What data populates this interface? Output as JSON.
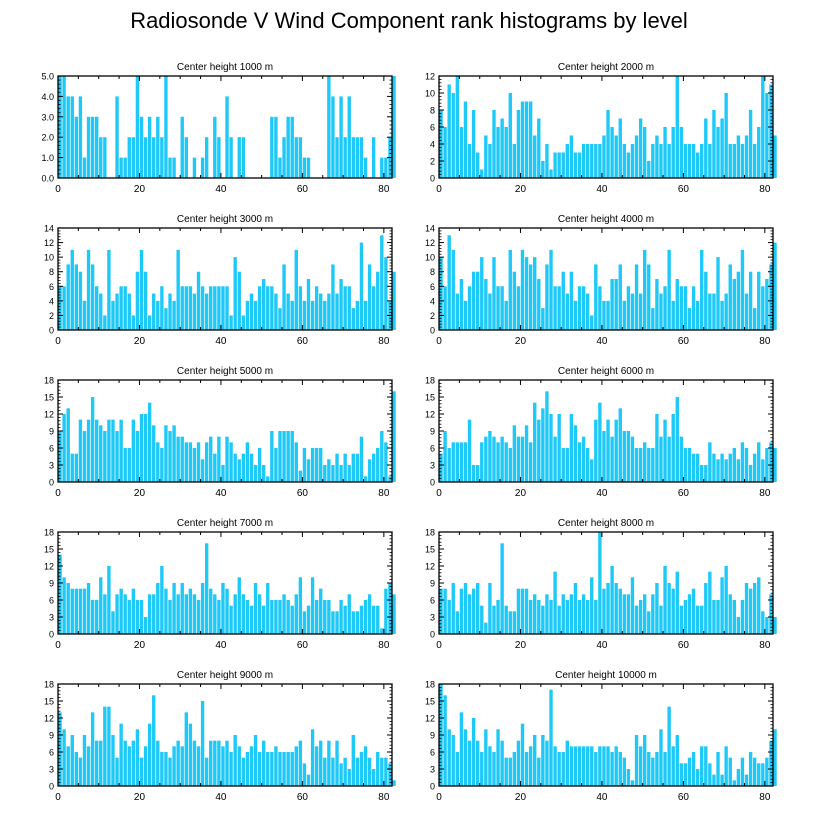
{
  "title": "Radiosonde V Wind Component rank histograms by level",
  "colors": {
    "bar": "#1ec8f7",
    "axis": "#000000",
    "background": "#ffffff"
  },
  "chart_data": [
    {
      "type": "bar",
      "title": "Center height 1000 m",
      "x_start": 0,
      "xlim": [
        0,
        82
      ],
      "ylim": [
        0,
        5
      ],
      "yticks": [
        0,
        1,
        2,
        3,
        4,
        5
      ],
      "ytick_labels": [
        "0.0",
        "1.0",
        "2.0",
        "3.0",
        "4.0",
        "5.0"
      ],
      "xticks": [
        0,
        20,
        40,
        60,
        80
      ],
      "values": [
        5,
        5,
        4,
        4,
        3,
        4,
        1,
        3,
        3,
        3,
        2,
        2,
        0,
        0,
        4,
        1,
        1,
        2,
        2,
        5,
        3,
        2,
        3,
        2,
        3,
        2,
        5,
        1,
        1,
        0,
        3,
        2,
        0,
        1,
        0,
        1,
        2,
        0,
        3,
        2,
        0,
        4,
        2,
        0,
        2,
        2,
        0,
        0,
        0,
        0,
        0,
        0,
        3,
        3,
        1,
        2,
        3,
        3,
        2,
        2,
        1,
        1,
        0,
        0,
        0,
        0,
        5,
        4,
        2,
        4,
        2,
        4,
        2,
        2,
        2,
        1,
        0,
        2,
        0,
        1,
        1,
        2,
        5
      ]
    },
    {
      "type": "bar",
      "title": "Center height 2000 m",
      "x_start": 0,
      "xlim": [
        0,
        82
      ],
      "ylim": [
        0,
        12
      ],
      "yticks": [
        0,
        2,
        4,
        6,
        8,
        10,
        12
      ],
      "ytick_labels": [
        "0",
        "2",
        "4",
        "6",
        "8",
        "10",
        "12"
      ],
      "xticks": [
        0,
        20,
        40,
        60,
        80
      ],
      "values": [
        8,
        6,
        11,
        10,
        12,
        6,
        9,
        4,
        8,
        3,
        1,
        5,
        4,
        8,
        6,
        7,
        6,
        10,
        4,
        8,
        9,
        9,
        9,
        5,
        7,
        2,
        4,
        1,
        3,
        3,
        3,
        4,
        5,
        3,
        3,
        4,
        4,
        4,
        4,
        4,
        5,
        8,
        6,
        5,
        7,
        4,
        3,
        4,
        5,
        7,
        6,
        2,
        4,
        5,
        4,
        6,
        4,
        6,
        12,
        6,
        4,
        4,
        4,
        3,
        4,
        7,
        4,
        8,
        6,
        7,
        10,
        4,
        4,
        5,
        4,
        5,
        8,
        4,
        6,
        12,
        10,
        11,
        5
      ]
    },
    {
      "type": "bar",
      "title": "Center height 3000 m",
      "x_start": 0,
      "xlim": [
        0,
        82
      ],
      "ylim": [
        0,
        14
      ],
      "yticks": [
        0,
        2,
        4,
        6,
        8,
        10,
        12,
        14
      ],
      "ytick_labels": [
        "0",
        "2",
        "4",
        "6",
        "8",
        "10",
        "12",
        "14"
      ],
      "xticks": [
        0,
        20,
        40,
        60,
        80
      ],
      "values": [
        6,
        6,
        9,
        11,
        9,
        8,
        4,
        11,
        9,
        6,
        5,
        2,
        11,
        4,
        5,
        6,
        6,
        5,
        2,
        8,
        11,
        8,
        2,
        5,
        4,
        6,
        3,
        5,
        4,
        11,
        6,
        6,
        6,
        5,
        8,
        6,
        5,
        6,
        6,
        6,
        6,
        6,
        2,
        10,
        8,
        2,
        4,
        5,
        4,
        6,
        7,
        6,
        6,
        5,
        3,
        9,
        5,
        4,
        11,
        6,
        4,
        7,
        4,
        6,
        5,
        4,
        5,
        9,
        5,
        7,
        6,
        6,
        3,
        4,
        12,
        4,
        9,
        6,
        8,
        13,
        10,
        4,
        8
      ]
    },
    {
      "type": "bar",
      "title": "Center height 4000 m",
      "x_start": 0,
      "xlim": [
        0,
        82
      ],
      "ylim": [
        0,
        14
      ],
      "yticks": [
        0,
        2,
        4,
        6,
        8,
        10,
        12,
        14
      ],
      "ytick_labels": [
        "0",
        "2",
        "4",
        "6",
        "8",
        "10",
        "12",
        "14"
      ],
      "xticks": [
        0,
        20,
        40,
        60,
        80
      ],
      "values": [
        10,
        6,
        13,
        11,
        5,
        7,
        4,
        6,
        8,
        8,
        10,
        7,
        5,
        10,
        6,
        6,
        4,
        11,
        8,
        6,
        11,
        10,
        9,
        10,
        7,
        3,
        9,
        11,
        6,
        6,
        8,
        5,
        8,
        4,
        6,
        6,
        5,
        2,
        9,
        6,
        4,
        4,
        7,
        7,
        9,
        4,
        6,
        5,
        9,
        5,
        11,
        9,
        3,
        7,
        5,
        6,
        11,
        4,
        7,
        6,
        6,
        3,
        6,
        4,
        11,
        8,
        5,
        5,
        10,
        4,
        5,
        9,
        7,
        8,
        11,
        5,
        8,
        3,
        8,
        6,
        7,
        9,
        12
      ]
    },
    {
      "type": "bar",
      "title": "Center height 5000 m",
      "x_start": 0,
      "xlim": [
        0,
        82
      ],
      "ylim": [
        0,
        18
      ],
      "yticks": [
        0,
        3,
        6,
        9,
        12,
        15,
        18
      ],
      "ytick_labels": [
        "0",
        "3",
        "6",
        "9",
        "12",
        "15",
        "18"
      ],
      "xticks": [
        0,
        20,
        40,
        60,
        80
      ],
      "values": [
        9,
        12,
        13,
        5,
        5,
        11,
        9,
        11,
        15,
        11,
        10,
        9,
        11,
        11,
        9,
        11,
        6,
        6,
        11,
        9,
        12,
        12,
        14,
        10,
        7,
        6,
        10,
        9,
        10,
        8,
        8,
        7,
        7,
        6,
        7,
        4,
        7,
        8,
        5,
        8,
        3,
        8,
        7,
        5,
        4,
        5,
        7,
        5,
        3,
        6,
        3,
        1,
        9,
        6,
        9,
        9,
        9,
        9,
        7,
        2,
        6,
        4,
        6,
        6,
        6,
        3,
        4,
        3,
        5,
        3,
        5,
        3,
        5,
        5,
        8,
        1,
        4,
        5,
        6,
        9,
        7,
        1,
        16
      ]
    },
    {
      "type": "bar",
      "title": "Center height 6000 m",
      "x_start": 0,
      "xlim": [
        0,
        82
      ],
      "ylim": [
        0,
        18
      ],
      "yticks": [
        0,
        3,
        6,
        9,
        12,
        15,
        18
      ],
      "ytick_labels": [
        "0",
        "3",
        "6",
        "9",
        "12",
        "15",
        "18"
      ],
      "xticks": [
        0,
        20,
        40,
        60,
        80
      ],
      "values": [
        5,
        9,
        6,
        7,
        7,
        7,
        7,
        11,
        3,
        3,
        7,
        8,
        9,
        8,
        7,
        8,
        7,
        6,
        10,
        8,
        8,
        10,
        7,
        14,
        11,
        13,
        16,
        12,
        8,
        12,
        6,
        6,
        12,
        10,
        7,
        8,
        6,
        4,
        11,
        14,
        9,
        11,
        8,
        11,
        13,
        9,
        9,
        8,
        6,
        6,
        7,
        6,
        6,
        12,
        8,
        11,
        8,
        12,
        15,
        8,
        6,
        6,
        5,
        5,
        3,
        3,
        7,
        5,
        4,
        5,
        4,
        5,
        6,
        4,
        7,
        6,
        3,
        5,
        7,
        4,
        6,
        7,
        6
      ]
    },
    {
      "type": "bar",
      "title": "Center height 7000 m",
      "x_start": 0,
      "xlim": [
        0,
        82
      ],
      "ylim": [
        0,
        18
      ],
      "yticks": [
        0,
        3,
        6,
        9,
        12,
        15,
        18
      ],
      "ytick_labels": [
        "0",
        "3",
        "6",
        "9",
        "12",
        "15",
        "18"
      ],
      "xticks": [
        0,
        20,
        40,
        60,
        80
      ],
      "values": [
        14,
        10,
        9,
        8,
        8,
        8,
        8,
        9,
        6,
        6,
        10,
        7,
        12,
        4,
        7,
        8,
        7,
        6,
        8,
        6,
        6,
        3,
        7,
        7,
        9,
        12,
        8,
        6,
        9,
        7,
        9,
        7,
        8,
        7,
        6,
        9,
        16,
        8,
        7,
        6,
        9,
        8,
        5,
        7,
        10,
        7,
        6,
        5,
        9,
        7,
        5,
        9,
        6,
        6,
        6,
        7,
        6,
        5,
        7,
        10,
        4,
        5,
        10,
        6,
        8,
        6,
        6,
        4,
        4,
        6,
        5,
        7,
        4,
        4,
        5,
        6,
        7,
        5,
        5,
        1,
        8,
        9,
        7
      ]
    },
    {
      "type": "bar",
      "title": "Center height 8000 m",
      "x_start": 0,
      "xlim": [
        0,
        82
      ],
      "ylim": [
        0,
        18
      ],
      "yticks": [
        0,
        3,
        6,
        9,
        12,
        15,
        18
      ],
      "ytick_labels": [
        "0",
        "3",
        "6",
        "9",
        "12",
        "15",
        "18"
      ],
      "xticks": [
        0,
        20,
        40,
        60,
        80
      ],
      "values": [
        8,
        8,
        6,
        9,
        4,
        8,
        9,
        7,
        8,
        9,
        5,
        2,
        9,
        5,
        6,
        16,
        5,
        4,
        4,
        8,
        8,
        8,
        6,
        7,
        6,
        5,
        7,
        6,
        11,
        5,
        7,
        6,
        7,
        9,
        6,
        7,
        6,
        10,
        6,
        18,
        8,
        9,
        12,
        9,
        8,
        7,
        7,
        10,
        5,
        6,
        7,
        4,
        7,
        9,
        5,
        12,
        9,
        8,
        11,
        5,
        6,
        7,
        8,
        5,
        5,
        9,
        11,
        6,
        6,
        10,
        12,
        7,
        6,
        3,
        6,
        9,
        8,
        9,
        10,
        4,
        3,
        7,
        3
      ]
    },
    {
      "type": "bar",
      "title": "Center height 9000 m",
      "x_start": 0,
      "xlim": [
        0,
        82
      ],
      "ylim": [
        0,
        18
      ],
      "yticks": [
        0,
        3,
        6,
        9,
        12,
        15,
        18
      ],
      "ytick_labels": [
        "0",
        "3",
        "6",
        "9",
        "12",
        "15",
        "18"
      ],
      "xticks": [
        0,
        20,
        40,
        60,
        80
      ],
      "values": [
        13,
        10,
        7,
        9,
        6,
        5,
        9,
        7,
        13,
        8,
        8,
        14,
        14,
        9,
        5,
        11,
        8,
        7,
        8,
        10,
        5,
        7,
        11,
        16,
        8,
        6,
        6,
        5,
        7,
        8,
        7,
        13,
        11,
        8,
        7,
        15,
        5,
        8,
        8,
        8,
        7,
        8,
        6,
        9,
        7,
        5,
        6,
        7,
        9,
        6,
        8,
        6,
        6,
        7,
        6,
        6,
        6,
        6,
        7,
        8,
        4,
        2,
        10,
        7,
        8,
        5,
        8,
        5,
        8,
        4,
        5,
        3,
        9,
        5,
        6,
        7,
        5,
        3,
        6,
        5,
        5,
        4,
        1
      ]
    },
    {
      "type": "bar",
      "title": "Center height 10000 m",
      "x_start": 0,
      "xlim": [
        0,
        82
      ],
      "ylim": [
        0,
        18
      ],
      "yticks": [
        0,
        3,
        6,
        9,
        12,
        15,
        18
      ],
      "ytick_labels": [
        "0",
        "3",
        "6",
        "9",
        "12",
        "15",
        "18"
      ],
      "xticks": [
        0,
        20,
        40,
        60,
        80
      ],
      "values": [
        18,
        16,
        10,
        9,
        6,
        13,
        10,
        8,
        12,
        8,
        6,
        10,
        7,
        6,
        10,
        8,
        5,
        5,
        6,
        8,
        11,
        6,
        7,
        9,
        5,
        9,
        8,
        17,
        7,
        6,
        6,
        8,
        7,
        7,
        7,
        7,
        7,
        7,
        6,
        7,
        7,
        7,
        6,
        7,
        6,
        5,
        3,
        1,
        9,
        7,
        9,
        6,
        5,
        6,
        10,
        6,
        14,
        7,
        9,
        4,
        4,
        5,
        6,
        3,
        7,
        7,
        4,
        2,
        6,
        2,
        7,
        5,
        1,
        3,
        5,
        2,
        6,
        5,
        4,
        4,
        5,
        8,
        10
      ]
    }
  ]
}
